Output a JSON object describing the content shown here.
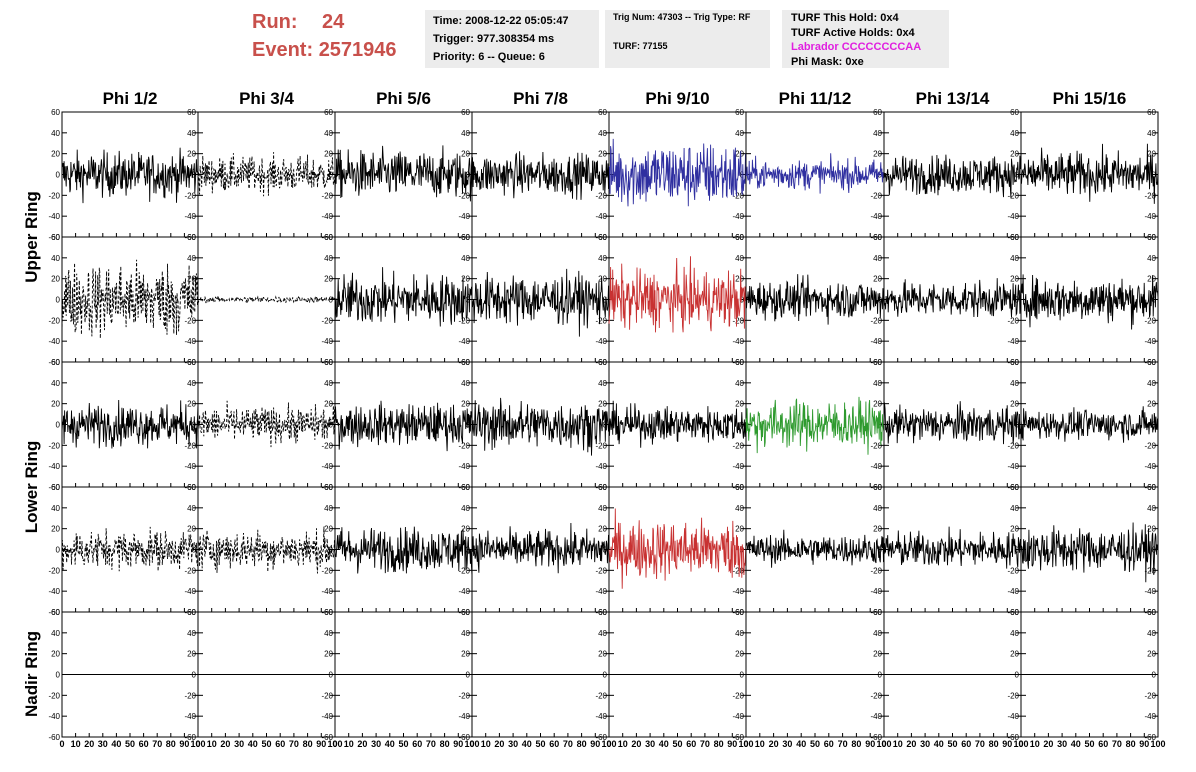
{
  "header": {
    "run_label": "Run:",
    "run_value": "24",
    "event_label": "Event:",
    "event_value": "2571946",
    "time": "Time: 2008-12-22 05:05:47",
    "trigger": "Trigger: 977.308354 ms",
    "priority": "Priority: 6 -- Queue: 6",
    "trig_num": "Trig Num: 47303 -- Trig Type: RF",
    "turf": "TURF: 77155",
    "turf_this_hold": "TURF This Hold: 0x4",
    "turf_active_holds": "TURF Active Holds: 0x4",
    "labrador": "Labrador CCCCCCCCAA",
    "phi_mask": "Phi Mask: 0xe"
  },
  "colors": {
    "header_red": "#c8504b",
    "labrador_magenta": "#e020e0",
    "trace_blue": "#2f2fa0",
    "trace_red": "#c83232",
    "trace_green": "#2e9a2e",
    "trace_black": "#000000"
  },
  "chart_data": {
    "type": "line",
    "columns": [
      "Phi 1/2",
      "Phi 3/4",
      "Phi 5/6",
      "Phi 7/8",
      "Phi 9/10",
      "Phi 11/12",
      "Phi 13/14",
      "Phi 15/16"
    ],
    "ring_labels": [
      {
        "text": "Upper Ring"
      },
      {
        "text": "Lower Ring"
      },
      {
        "text": "Nadir Ring"
      }
    ],
    "xlim": [
      0,
      100
    ],
    "ylim": [
      -60,
      60
    ],
    "x_tick_labels": [
      "0",
      "10",
      "20",
      "30",
      "40",
      "50",
      "60",
      "70",
      "80",
      "90",
      "100"
    ],
    "y_tick_labels": [
      "-60",
      "-40",
      "-20",
      "0",
      "20",
      "40",
      "60"
    ],
    "rows": [
      [
        {
          "style": "solid",
          "color": "black",
          "amp": 15
        },
        {
          "style": "dashed",
          "color": "black",
          "amp": 12
        },
        {
          "style": "solid",
          "color": "black",
          "amp": 16
        },
        {
          "style": "solid",
          "color": "black",
          "amp": 14
        },
        {
          "style": "solid",
          "color": "blue",
          "amp": 22
        },
        {
          "style": "solid",
          "color": "blue",
          "amp": 10
        },
        {
          "style": "solid",
          "color": "black",
          "amp": 13
        },
        {
          "style": "solid",
          "color": "black",
          "amp": 15
        }
      ],
      [
        {
          "style": "dashed",
          "color": "black",
          "amp": 25
        },
        {
          "style": "dashed",
          "color": "black",
          "amp": 2
        },
        {
          "style": "solid",
          "color": "black",
          "amp": 17
        },
        {
          "style": "solid",
          "color": "black",
          "amp": 17
        },
        {
          "style": "solid",
          "color": "red",
          "amp": 20
        },
        {
          "style": "solid",
          "color": "black",
          "amp": 13
        },
        {
          "style": "solid",
          "color": "black",
          "amp": 12
        },
        {
          "style": "solid",
          "color": "black",
          "amp": 15
        }
      ],
      [
        {
          "style": "solid",
          "color": "black",
          "amp": 14
        },
        {
          "style": "dashed",
          "color": "black",
          "amp": 12
        },
        {
          "style": "solid",
          "color": "black",
          "amp": 14
        },
        {
          "style": "solid",
          "color": "black",
          "amp": 16
        },
        {
          "style": "solid",
          "color": "black",
          "amp": 12
        },
        {
          "style": "solid",
          "color": "green",
          "amp": 16
        },
        {
          "style": "solid",
          "color": "black",
          "amp": 12
        },
        {
          "style": "solid",
          "color": "black",
          "amp": 10
        }
      ],
      [
        {
          "style": "dashed",
          "color": "black",
          "amp": 13
        },
        {
          "style": "dashed",
          "color": "black",
          "amp": 13
        },
        {
          "style": "solid",
          "color": "black",
          "amp": 15
        },
        {
          "style": "solid",
          "color": "black",
          "amp": 13
        },
        {
          "style": "solid",
          "color": "red",
          "amp": 20
        },
        {
          "style": "solid",
          "color": "black",
          "amp": 10
        },
        {
          "style": "solid",
          "color": "black",
          "amp": 12
        },
        {
          "style": "solid",
          "color": "black",
          "amp": 15
        }
      ],
      [
        {
          "style": "flat",
          "color": "black",
          "amp": 0
        },
        {
          "style": "flat",
          "color": "black",
          "amp": 0
        },
        {
          "style": "flat",
          "color": "black",
          "amp": 0
        },
        {
          "style": "flat",
          "color": "black",
          "amp": 0
        },
        {
          "style": "flat",
          "color": "black",
          "amp": 0
        },
        {
          "style": "flat",
          "color": "black",
          "amp": 0
        },
        {
          "style": "flat",
          "color": "black",
          "amp": 0
        },
        {
          "style": "flat",
          "color": "black",
          "amp": 0
        }
      ]
    ]
  }
}
